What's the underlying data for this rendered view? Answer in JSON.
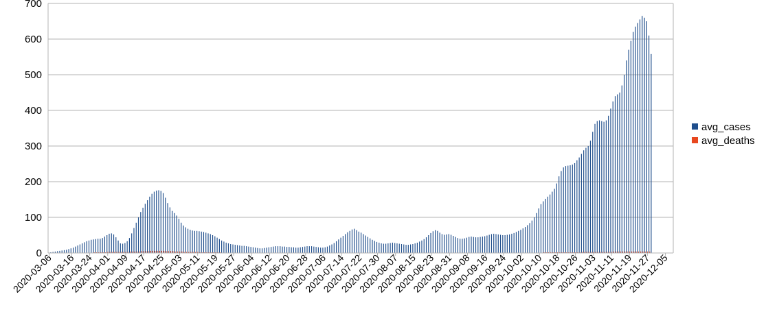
{
  "chart_data": {
    "type": "bar",
    "title": "",
    "xlabel": "",
    "ylabel": "",
    "ylim": [
      0,
      700
    ],
    "yticks": [
      0,
      100,
      200,
      300,
      400,
      500,
      600,
      700
    ],
    "x_start": "2020-03-06",
    "x_end": "2020-12-08",
    "x_tick_labels": [
      "2020-03-06",
      "2020-03-16",
      "2020-03-24",
      "2020-04-01",
      "2020-04-09",
      "2020-04-17",
      "2020-04-25",
      "2020-05-03",
      "2020-05-11",
      "2020-05-19",
      "2020-05-27",
      "2020-06-04",
      "2020-06-12",
      "2020-06-20",
      "2020-06-28",
      "2020-07-06",
      "2020-07-14",
      "2020-07-22",
      "2020-07-30",
      "2020-08-07",
      "2020-08-15",
      "2020-08-23",
      "2020-08-31",
      "2020-09-08",
      "2020-09-16",
      "2020-09-24",
      "2020-10-02",
      "2020-10-10",
      "2020-10-18",
      "2020-10-26",
      "2020-11-03",
      "2020-11-11",
      "2020-11-19",
      "2020-11-27",
      "2020-12-05"
    ],
    "grid": true,
    "legend_position": "right",
    "series": [
      {
        "name": "avg_cases",
        "color": "#1f4e8c",
        "values": [
          1,
          2,
          3,
          4,
          5,
          6,
          7,
          8,
          9,
          11,
          13,
          15,
          18,
          21,
          24,
          27,
          30,
          33,
          35,
          37,
          38,
          39,
          40,
          40,
          42,
          46,
          50,
          54,
          55,
          52,
          44,
          35,
          27,
          26,
          28,
          33,
          42,
          55,
          70,
          85,
          100,
          115,
          127,
          138,
          148,
          158,
          166,
          172,
          175,
          176,
          174,
          168,
          155,
          140,
          128,
          118,
          112,
          105,
          96,
          85,
          77,
          72,
          68,
          65,
          63,
          62,
          62,
          61,
          60,
          59,
          57,
          55,
          53,
          50,
          47,
          43,
          39,
          35,
          32,
          29,
          27,
          25,
          24,
          23,
          22,
          21,
          20,
          20,
          19,
          18,
          17,
          16,
          15,
          14,
          13,
          13,
          14,
          15,
          16,
          17,
          18,
          19,
          19,
          19,
          18,
          18,
          17,
          17,
          16,
          16,
          15,
          15,
          16,
          17,
          18,
          19,
          19,
          19,
          18,
          17,
          16,
          15,
          15,
          16,
          18,
          21,
          24,
          28,
          33,
          38,
          43,
          48,
          53,
          58,
          62,
          66,
          68,
          64,
          60,
          57,
          53,
          49,
          45,
          41,
          37,
          34,
          31,
          29,
          27,
          26,
          26,
          27,
          28,
          29,
          28,
          27,
          26,
          25,
          24,
          23,
          23,
          24,
          25,
          27,
          29,
          32,
          35,
          39,
          44,
          50,
          56,
          61,
          64,
          62,
          57,
          53,
          51,
          52,
          53,
          51,
          48,
          45,
          42,
          40,
          40,
          41,
          43,
          45,
          46,
          45,
          44,
          44,
          45,
          46,
          47,
          49,
          51,
          53,
          54,
          53,
          52,
          51,
          50,
          50,
          51,
          52,
          54,
          56,
          59,
          62,
          65,
          69,
          73,
          78,
          84,
          91,
          100,
          112,
          125,
          137,
          145,
          152,
          158,
          164,
          172,
          180,
          195,
          215,
          230,
          240,
          244,
          245,
          246,
          248,
          252,
          260,
          268,
          278,
          288,
          295,
          300,
          315,
          340,
          362,
          370,
          372,
          370,
          368,
          372,
          385,
          405,
          425,
          440,
          445,
          450,
          470,
          500,
          540,
          570,
          595,
          620,
          635,
          645,
          655,
          665,
          660,
          650,
          610,
          558
        ]
      },
      {
        "name": "avg_deaths",
        "color": "#e8481f",
        "values": [
          0,
          0,
          0,
          0,
          0,
          0,
          0,
          0,
          0,
          0,
          0,
          0,
          0,
          0,
          1,
          1,
          1,
          1,
          1,
          1,
          2,
          2,
          2,
          2,
          2,
          2,
          3,
          3,
          3,
          3,
          3,
          3,
          3,
          3,
          3,
          3,
          4,
          4,
          4,
          4,
          4,
          5,
          5,
          5,
          5,
          6,
          6,
          6,
          6,
          6,
          6,
          6,
          5,
          5,
          5,
          5,
          4,
          4,
          4,
          4,
          3,
          3,
          3,
          3,
          3,
          3,
          3,
          2,
          2,
          2,
          2,
          2,
          2,
          2,
          2,
          2,
          2,
          1,
          1,
          1,
          1,
          1,
          1,
          1,
          1,
          1,
          1,
          1,
          1,
          1,
          1,
          1,
          1,
          1,
          1,
          1,
          1,
          1,
          1,
          1,
          1,
          1,
          1,
          1,
          1,
          1,
          1,
          1,
          1,
          1,
          1,
          1,
          1,
          1,
          1,
          1,
          1,
          1,
          1,
          1,
          1,
          1,
          1,
          1,
          1,
          1,
          1,
          1,
          1,
          1,
          1,
          1,
          1,
          1,
          1,
          1,
          1,
          1,
          1,
          1,
          1,
          1,
          1,
          1,
          1,
          1,
          1,
          1,
          1,
          1,
          1,
          1,
          1,
          1,
          1,
          1,
          1,
          1,
          1,
          1,
          1,
          1,
          1,
          1,
          1,
          1,
          1,
          1,
          1,
          1,
          1,
          1,
          1,
          1,
          1,
          1,
          1,
          1,
          1,
          1,
          1,
          1,
          1,
          1,
          1,
          1,
          1,
          1,
          1,
          1,
          1,
          1,
          1,
          1,
          1,
          1,
          1,
          1,
          1,
          1,
          1,
          1,
          1,
          1,
          1,
          1,
          1,
          1,
          1,
          1,
          1,
          1,
          1,
          1,
          1,
          1,
          1,
          1,
          1,
          1,
          2,
          2,
          2,
          2,
          2,
          2,
          2,
          2,
          2,
          2,
          2,
          2,
          2,
          2,
          2,
          2,
          2,
          3,
          3,
          3,
          3,
          3,
          3,
          3,
          3,
          3,
          3,
          3,
          3,
          3,
          3,
          4,
          4,
          4,
          4,
          4,
          4,
          4,
          4,
          4,
          4,
          4,
          4,
          4,
          4,
          4,
          4,
          4
        ]
      }
    ]
  }
}
